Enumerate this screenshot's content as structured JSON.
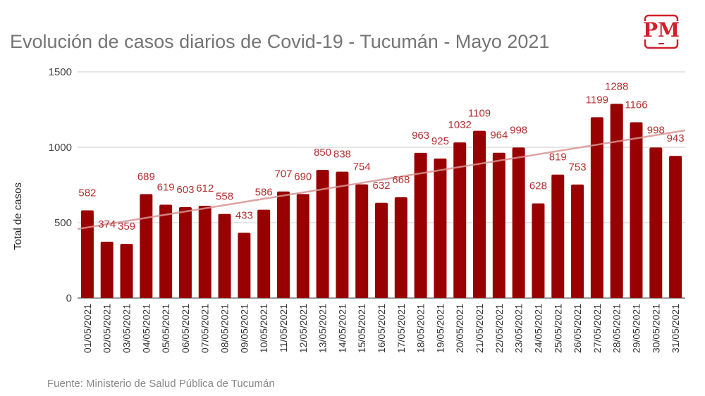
{
  "chart_data": {
    "type": "bar",
    "title": "Evolución de casos diarios de Covid-19 - Tucumán - Mayo 2021",
    "xlabel": "",
    "ylabel": "Total de casos",
    "ylim": [
      0,
      1500
    ],
    "yticks": [
      0,
      500,
      1000,
      1500
    ],
    "grid": true,
    "bar_color": "#990000",
    "label_color": "#b03030",
    "trendline": {
      "type": "linear",
      "color": "#d99494",
      "start": 458,
      "end": 1112
    },
    "categories": [
      "01/05/2021",
      "02/05/2021",
      "03/05/2021",
      "04/05/2021",
      "05/05/2021",
      "06/05/2021",
      "07/05/2021",
      "08/05/2021",
      "09/05/2021",
      "10/05/2021",
      "11/05/2021",
      "12/05/2021",
      "13/05/2021",
      "14/05/2021",
      "15/05/2021",
      "16/05/2021",
      "17/05/2021",
      "18/05/2021",
      "19/05/2021",
      "20/05/2021",
      "21/05/2021",
      "22/05/2021",
      "23/05/2021",
      "24/05/2021",
      "25/05/2021",
      "26/05/2021",
      "27/05/2021",
      "28/05/2021",
      "29/05/2021",
      "30/05/2021",
      "31/05/2021"
    ],
    "values": [
      582,
      374,
      359,
      689,
      619,
      603,
      612,
      558,
      433,
      586,
      707,
      690,
      850,
      838,
      754,
      632,
      668,
      963,
      925,
      1032,
      1109,
      964,
      998,
      628,
      819,
      753,
      1199,
      1288,
      1166,
      998,
      943
    ]
  },
  "source": "Fuente: Ministerio de Salud Pública de Tucumán",
  "logo": {
    "text": "PM",
    "color": "#d0202a"
  }
}
